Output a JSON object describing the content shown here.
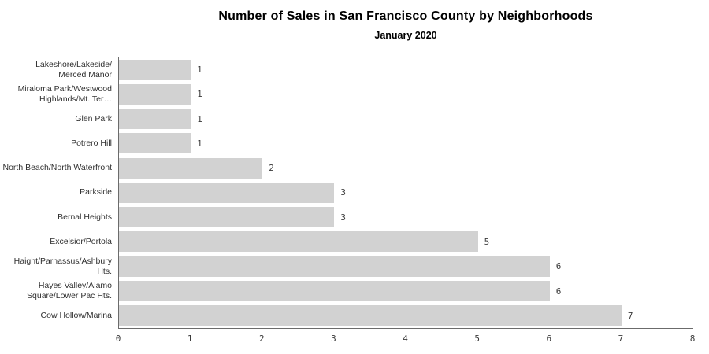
{
  "chart_data": {
    "type": "bar",
    "orientation": "horizontal",
    "title": "Number of Sales in San Francisco County by Neighborhoods",
    "subtitle": "January 2020",
    "categories": [
      "Lakeshore/Lakeside/\nMerced Manor",
      "Miraloma Park/Westwood\nHighlands/Mt. Ter…",
      "Glen Park",
      "Potrero Hill",
      "North Beach/North Waterfront",
      "Parkside",
      "Bernal Heights",
      "Excelsior/Portola",
      "Haight/Parnassus/Ashbury\nHts.",
      "Hayes Valley/Alamo\nSquare/Lower Pac Hts.",
      "Cow Hollow/Marina"
    ],
    "values": [
      1,
      1,
      1,
      1,
      2,
      3,
      3,
      5,
      6,
      6,
      7
    ],
    "xlabel": "",
    "ylabel": "",
    "xlim": [
      0,
      8
    ],
    "x_ticks": [
      0,
      1,
      2,
      3,
      4,
      5,
      6,
      7,
      8
    ],
    "grid": false,
    "legend": false,
    "data_labels": true,
    "bar_color": "#d2d2d2",
    "axis_color": "#6b6b6b",
    "text_color": "#303030"
  }
}
